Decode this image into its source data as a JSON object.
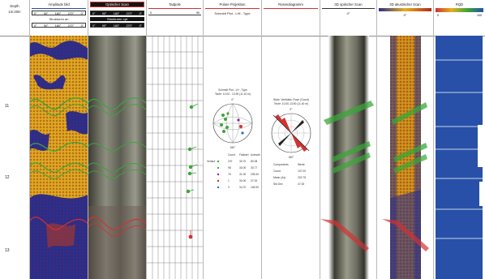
{
  "depth": {
    "header": "Depth",
    "unit": "1m:20m",
    "marks": [
      "11",
      "12",
      "13"
    ],
    "values": [
      11,
      12,
      13
    ]
  },
  "tracks": {
    "amplitude": {
      "title": "Amplitude bild",
      "scale": [
        "0°",
        "90°",
        "180°",
        "270°",
        "0°"
      ],
      "sub_title": "Strukturen an",
      "sub_scale": [
        "0°",
        "90°",
        "180°",
        "270°",
        "0°"
      ]
    },
    "optical": {
      "title": "Optischer Scan",
      "scale": [
        "0°",
        "90°",
        "180°",
        "270°",
        "0°"
      ],
      "sub_title": "Strukturen opt",
      "sub_scale": [
        "0°",
        "90°",
        "180°",
        "270°",
        "0°"
      ]
    },
    "tadpole": {
      "title": "Tadpole",
      "scale_min": "0",
      "scale_max": "90"
    },
    "polar": {
      "title": "Polare Projektion",
      "subtitle": "Schmidt Plot - LHi - Type"
    },
    "rose": {
      "title": "Rosendiagramm"
    },
    "scan3d_opt": {
      "title": "3D optischer Scan",
      "scale": "0°"
    },
    "scan3d_ak": {
      "title": "3D akustischer Scan",
      "scale": "0°"
    },
    "rqd": {
      "title": "RQD",
      "scale_min": "0",
      "scale_max": "100"
    }
  },
  "stereonet": {
    "title": "Schmidt Plot - LH - Type",
    "subtitle": "Teufe: 10.00 - 13.90 (11.40 m)",
    "north_label": "0°",
    "south_label": "180°",
    "table_headers": [
      "Count",
      "Fallwert",
      "Azimuth"
    ],
    "table_rows": [
      [
        "Verlauf",
        "237",
        "30.70",
        "80.08"
      ],
      [
        "",
        "98",
        "30.00",
        "30.77"
      ],
      [
        "",
        "76",
        "31.00",
        "205.40"
      ],
      [
        "",
        "1",
        "30.00",
        "37.00"
      ],
      [
        "",
        "3",
        "34.70",
        "165.90"
      ]
    ]
  },
  "rosette": {
    "title": "Wahr. Vertikalis. Rose (Count)",
    "subtitle": "Teufe: 10.00-13.90 (11.40 m)",
    "north_label": "0°",
    "south_label": "180°",
    "stats": [
      [
        "Components",
        "Werte"
      ],
      [
        "Count",
        "107.00"
      ],
      [
        "Mean (Az)",
        "222.75"
      ],
      [
        "Std Dev",
        "47.00"
      ]
    ]
  },
  "colors": {
    "amplitude_high": "#e4b020",
    "amplitude_low": "#2b2e88",
    "amplitude_mid": "#b02818",
    "structure_green": "#3aa63a",
    "structure_red": "#d23232",
    "rqd_blue": "#2850a8",
    "header_dark": "#141414"
  }
}
